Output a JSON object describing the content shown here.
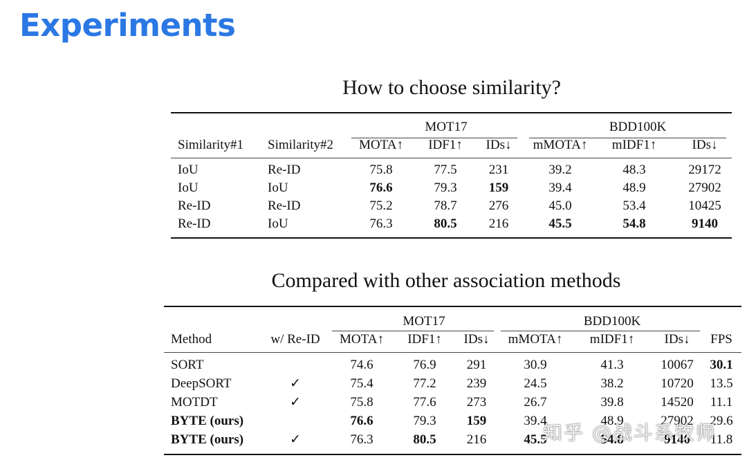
{
  "slide_title": "Experiments",
  "table1": {
    "caption": "How to choose similarity?",
    "groups": [
      "MOT17",
      "BDD100K"
    ],
    "headers": [
      "Similarity#1",
      "Similarity#2",
      "MOTA↑",
      "IDF1↑",
      "IDs↓",
      "mMOTA↑",
      "mIDF1↑",
      "IDs↓"
    ],
    "rows": [
      [
        "IoU",
        "Re-ID",
        "75.8",
        "77.5",
        "231",
        "39.2",
        "48.3",
        "29172"
      ],
      [
        "IoU",
        "IoU",
        "76.6",
        "79.3",
        "159",
        "39.4",
        "48.9",
        "27902"
      ],
      [
        "Re-ID",
        "Re-ID",
        "75.2",
        "78.7",
        "276",
        "45.0",
        "53.4",
        "10425"
      ],
      [
        "Re-ID",
        "IoU",
        "76.3",
        "80.5",
        "216",
        "45.5",
        "54.8",
        "9140"
      ]
    ],
    "bold": [
      [
        false,
        false,
        false,
        false,
        false,
        false,
        false,
        false
      ],
      [
        false,
        false,
        true,
        false,
        true,
        false,
        false,
        false
      ],
      [
        false,
        false,
        false,
        false,
        false,
        false,
        false,
        false
      ],
      [
        false,
        false,
        false,
        true,
        false,
        true,
        true,
        true
      ]
    ]
  },
  "table2": {
    "caption": "Compared with other association methods",
    "groups": [
      "MOT17",
      "BDD100K"
    ],
    "headers": [
      "Method",
      "w/ Re-ID",
      "MOTA↑",
      "IDF1↑",
      "IDs↓",
      "mMOTA↑",
      "mIDF1↑",
      "IDs↓",
      "FPS"
    ],
    "rows": [
      [
        "SORT",
        "",
        "74.6",
        "76.9",
        "291",
        "30.9",
        "41.3",
        "10067",
        "30.1"
      ],
      [
        "DeepSORT",
        "✓",
        "75.4",
        "77.2",
        "239",
        "24.5",
        "38.2",
        "10720",
        "13.5"
      ],
      [
        "MOTDT",
        "✓",
        "75.8",
        "77.6",
        "273",
        "26.7",
        "39.8",
        "14520",
        "11.1"
      ],
      [
        "BYTE (ours)",
        "",
        "76.6",
        "79.3",
        "159",
        "39.4",
        "48.9",
        "27902",
        "29.6"
      ],
      [
        "BYTE (ours)",
        "✓",
        "76.3",
        "80.5",
        "216",
        "45.5",
        "54.8",
        "9140",
        "11.8"
      ]
    ],
    "bold": [
      [
        false,
        false,
        false,
        false,
        false,
        false,
        false,
        false,
        true
      ],
      [
        false,
        false,
        false,
        false,
        false,
        false,
        false,
        false,
        false
      ],
      [
        false,
        false,
        false,
        false,
        false,
        false,
        false,
        false,
        false
      ],
      [
        true,
        false,
        true,
        false,
        true,
        false,
        false,
        false,
        false
      ],
      [
        true,
        false,
        false,
        true,
        false,
        true,
        true,
        true,
        false
      ]
    ]
  },
  "watermark": "知乎 @战斗系牧师"
}
